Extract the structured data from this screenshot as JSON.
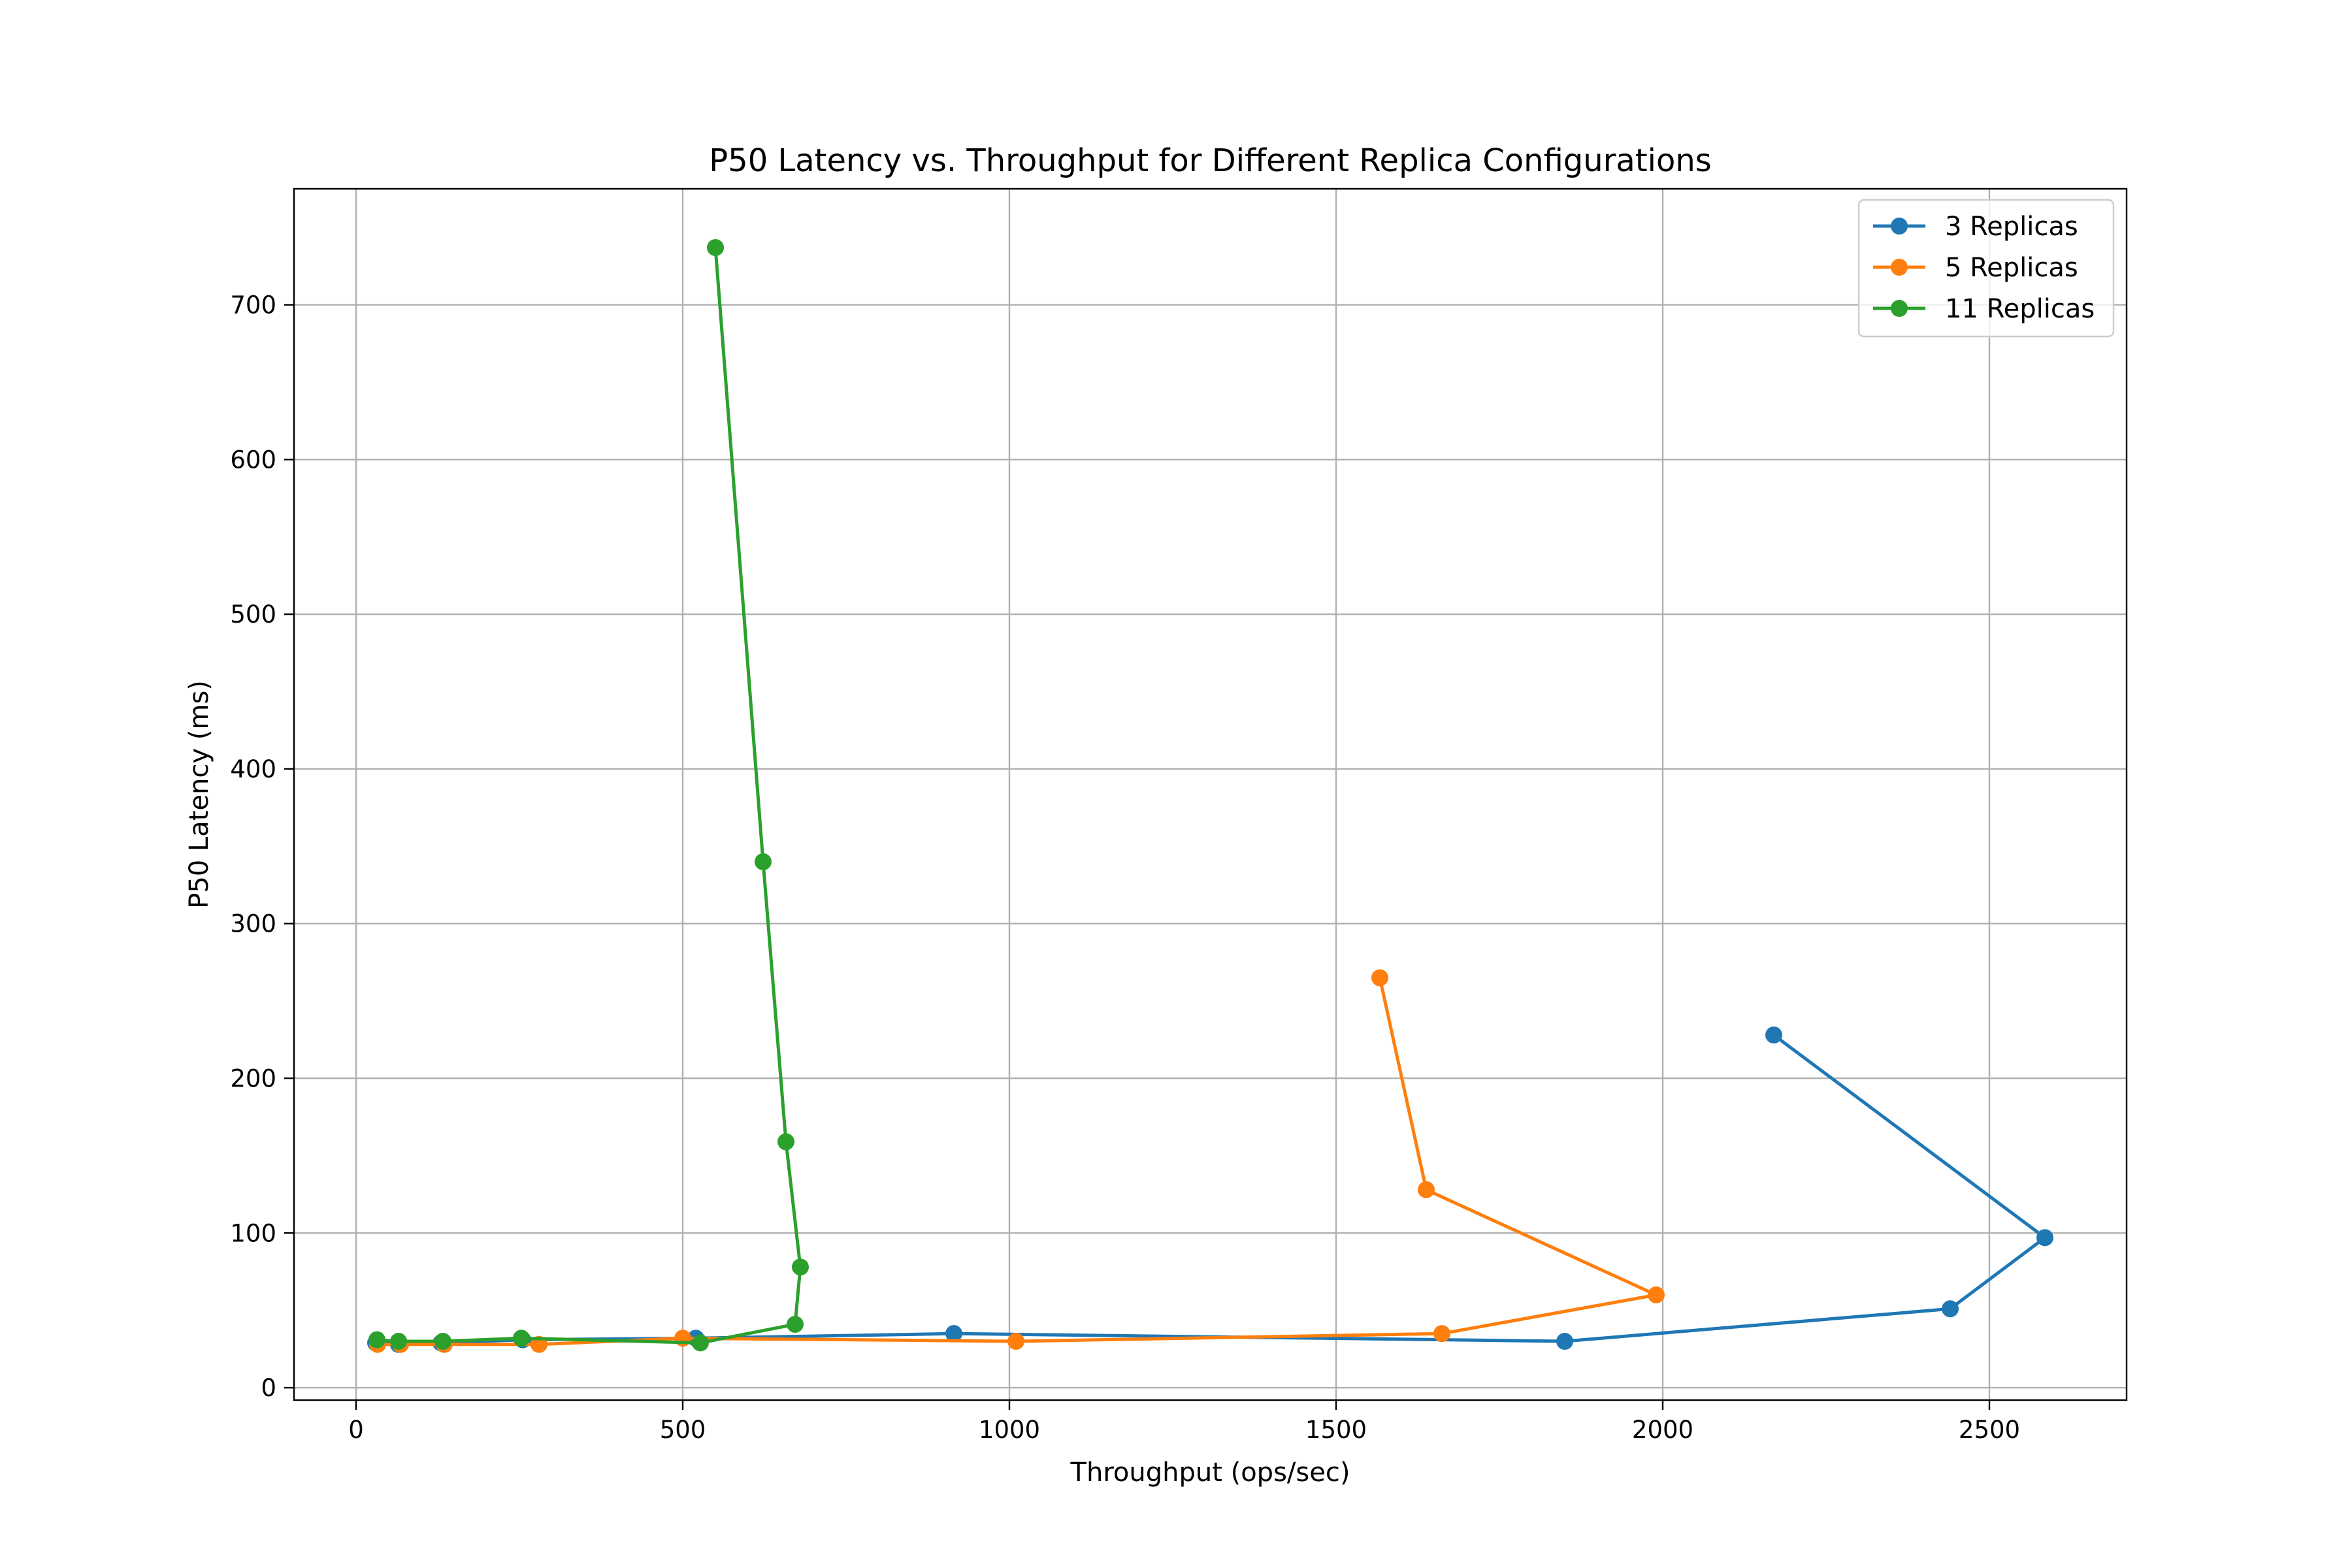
{
  "chart_data": {
    "type": "line",
    "title": "P50 Latency vs. Throughput for Different Replica Configurations",
    "xlabel": "Throughput (ops/sec)",
    "ylabel": "P50 Latency (ms)",
    "xlim": [
      -95,
      2710
    ],
    "ylim": [
      -8,
      775
    ],
    "x_ticks": [
      0,
      500,
      1000,
      1500,
      2000,
      2500
    ],
    "y_ticks": [
      0,
      100,
      200,
      300,
      400,
      500,
      600,
      700
    ],
    "grid": true,
    "legend_position": "top-right",
    "markers": true,
    "series": [
      {
        "name": "3 Replicas",
        "color": "#1f77b4",
        "x": [
          30,
          65,
          130,
          255,
          520,
          915,
          1850,
          2440,
          2585,
          2170
        ],
        "y": [
          29,
          28,
          29,
          31,
          32,
          35,
          30,
          51,
          97,
          228
        ]
      },
      {
        "name": "5 Replicas",
        "color": "#ff7f0e",
        "x": [
          33,
          68,
          135,
          280,
          500,
          1010,
          1662,
          1990,
          1638,
          1567
        ],
        "y": [
          28,
          28,
          28,
          28,
          32,
          30,
          35,
          60,
          128,
          265
        ]
      },
      {
        "name": "11 Replicas",
        "color": "#2ca02c",
        "x": [
          32,
          65,
          133,
          253,
          527,
          672,
          680,
          658,
          623,
          550
        ],
        "y": [
          31,
          30,
          30,
          32,
          29,
          41,
          78,
          159,
          340,
          737
        ]
      }
    ]
  }
}
